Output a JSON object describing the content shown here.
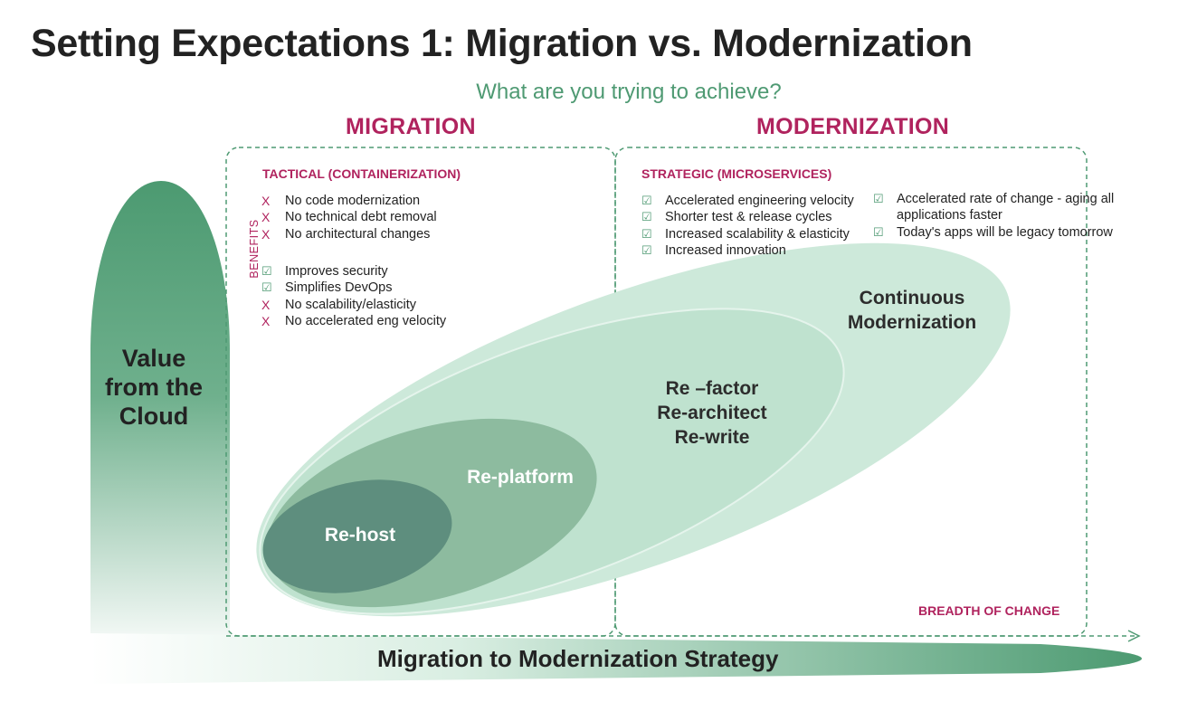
{
  "title": "Setting Expectations 1: Migration vs. Modernization",
  "subtitle": "What are you trying to achieve?",
  "migration": {
    "heading": "MIGRATION",
    "subheading": "TACTICAL (CONTAINERIZATION)",
    "drawbacks": [
      "No code modernization",
      "No technical debt removal",
      "No architectural changes"
    ],
    "benefits_label": "BENEFITS",
    "benefits": [
      {
        "mark": "check",
        "text": "Improves security"
      },
      {
        "mark": "check",
        "text": "Simplifies DevOps"
      },
      {
        "mark": "x",
        "text": "No scalability/elasticity"
      },
      {
        "mark": "x",
        "text": "No accelerated eng velocity"
      }
    ]
  },
  "modernization": {
    "heading": "MODERNIZATION",
    "subheading": "STRATEGIC  (MICROSERVICES)",
    "benefits_left": [
      "Accelerated engineering velocity",
      "Shorter test & release cycles",
      "Increased scalability & elasticity",
      "Increased innovation"
    ],
    "benefits_right": [
      "Accelerated rate of change - aging all applications faster",
      "Today's apps will be legacy tomorrow"
    ]
  },
  "stages": {
    "continuous": [
      "Continuous",
      "Modernization"
    ],
    "refactor": [
      "Re –factor",
      "Re-architect",
      "Re-write"
    ],
    "replatform": "Re-platform",
    "rehost": "Re-host"
  },
  "axes": {
    "y_label": "Value from the Cloud",
    "x_label": "Migration to Modernization Strategy",
    "breadth_label": "BREADTH OF CHANGE"
  },
  "marks": {
    "x": "X",
    "check": "☑"
  },
  "colors": {
    "accent": "#b0235e",
    "green": "#4f9a73",
    "ellipse_outer": "#cde9da",
    "ellipse_mid": "#bfe2cf",
    "ellipse_replatform": "#8dbb9f",
    "ellipse_rehost": "#5e8e7e"
  }
}
